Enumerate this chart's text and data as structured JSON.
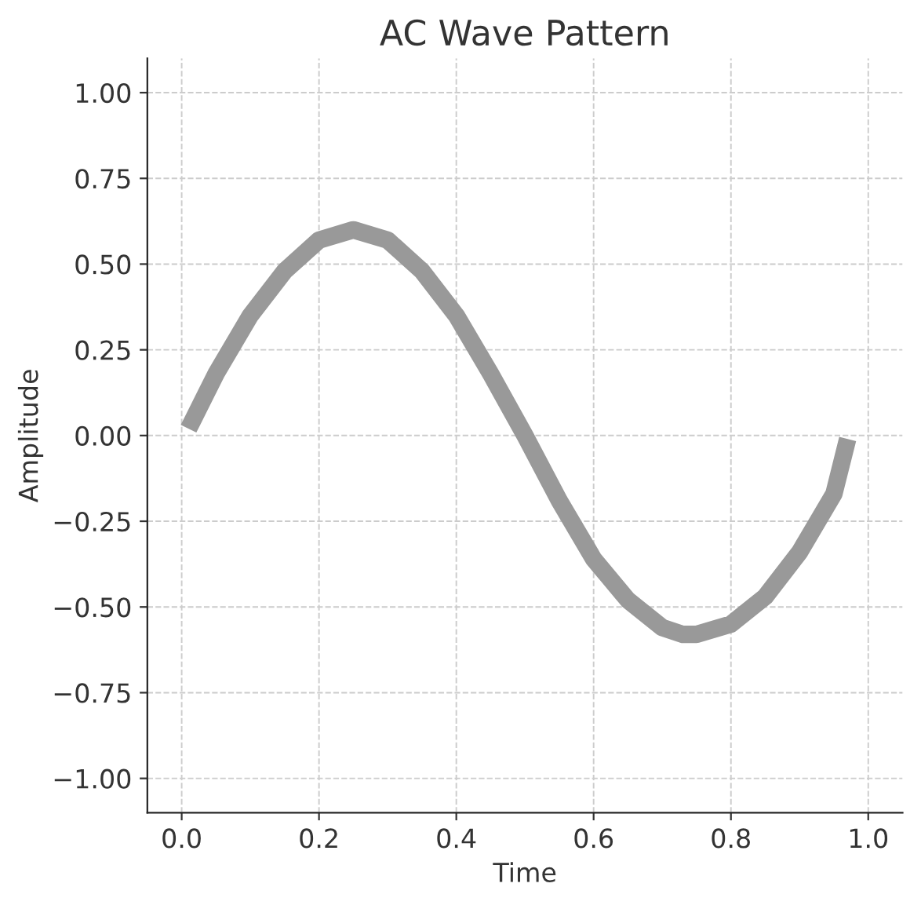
{
  "chart_data": {
    "type": "line",
    "title": "AC Wave Pattern",
    "xlabel": "Time",
    "ylabel": "Amplitude",
    "x": [
      0.01,
      0.05,
      0.1,
      0.15,
      0.2,
      0.25,
      0.3,
      0.35,
      0.4,
      0.45,
      0.5,
      0.55,
      0.6,
      0.65,
      0.7,
      0.73,
      0.75,
      0.8,
      0.85,
      0.9,
      0.95,
      0.97
    ],
    "series": [
      {
        "color": "#999999",
        "values": [
          0.02,
          0.18,
          0.35,
          0.48,
          0.57,
          0.6,
          0.57,
          0.48,
          0.35,
          0.18,
          0.0,
          -0.19,
          -0.36,
          -0.48,
          -0.56,
          -0.58,
          -0.58,
          -0.55,
          -0.47,
          -0.34,
          -0.17,
          -0.01
        ]
      }
    ],
    "xlim": [
      -0.05,
      1.05
    ],
    "ylim": [
      -1.1,
      1.1
    ],
    "xticks": [
      {
        "value": 0.0,
        "label": "0.0"
      },
      {
        "value": 0.2,
        "label": "0.2"
      },
      {
        "value": 0.4,
        "label": "0.4"
      },
      {
        "value": 0.6,
        "label": "0.6"
      },
      {
        "value": 0.8,
        "label": "0.8"
      },
      {
        "value": 1.0,
        "label": "1.0"
      }
    ],
    "yticks": [
      {
        "value": -1.0,
        "label": "−1.00"
      },
      {
        "value": -0.75,
        "label": "−0.75"
      },
      {
        "value": -0.5,
        "label": "−0.50"
      },
      {
        "value": -0.25,
        "label": "−0.25"
      },
      {
        "value": 0.0,
        "label": "0.00"
      },
      {
        "value": 0.25,
        "label": "0.25"
      },
      {
        "value": 0.5,
        "label": "0.50"
      },
      {
        "value": 0.75,
        "label": "0.75"
      },
      {
        "value": 1.0,
        "label": "1.00"
      }
    ],
    "grid": true,
    "legend": false,
    "marker": "none",
    "line_style": "solid"
  }
}
